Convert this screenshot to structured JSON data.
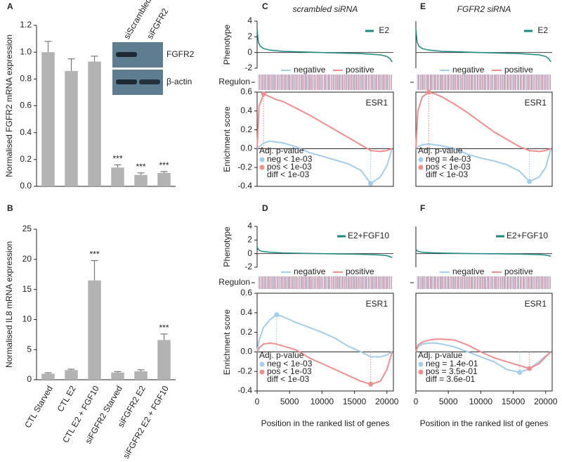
{
  "chart_data": [
    {
      "type": "bar",
      "label": "A",
      "ylabel": "Normalised FGFR2 mRNA expression",
      "values": [
        1.0,
        0.86,
        0.93,
        0.14,
        0.085,
        0.1
      ],
      "errors": [
        0.08,
        0.09,
        0.04,
        0.02,
        0.015,
        0.01
      ],
      "significance": [
        null,
        null,
        null,
        "***",
        "***",
        "***"
      ],
      "color": "#b3b3b3",
      "ylim": [
        0,
        1.2
      ],
      "yticks": [
        {
          "value": 0,
          "label": "0.0"
        },
        0.2,
        0.4,
        0.6,
        0.8,
        {
          "value": 1,
          "label": "1.0"
        },
        1.2
      ],
      "inset": {
        "columns": [
          "siScrambled",
          "siFGFR2"
        ],
        "rows": [
          "FGFR2",
          "β-actin"
        ]
      }
    },
    {
      "type": "bar",
      "label": "B",
      "ylabel": "Normalised IL8 mRNA expression",
      "categories": [
        "CTL Starved",
        "CTL E2",
        "CTL E2 + FGF10",
        "siFGFR2 Starved",
        "siFGFR2 E2",
        "siFGFR2 E2 + FGF10"
      ],
      "values": [
        1.0,
        1.6,
        16.5,
        1.2,
        1.4,
        6.6
      ],
      "errors": [
        0.15,
        0.15,
        3.3,
        0.15,
        0.25,
        1.0
      ],
      "significance": [
        null,
        null,
        "***",
        null,
        null,
        "***"
      ],
      "color": "#b3b3b3",
      "ylim": [
        0,
        25
      ],
      "yticks": [
        0,
        5,
        10,
        15,
        20,
        25
      ]
    },
    {
      "type": "enrichment",
      "label": "C",
      "title": "scrambled siRNA",
      "xlim": [
        0,
        21000
      ],
      "phenotype": {
        "ylabel": "Phenotype",
        "name": "E2",
        "color": "#1a8a80",
        "ylim": [
          -2,
          4
        ],
        "yticks": [
          -2,
          0,
          2,
          4
        ],
        "x": [
          0,
          200,
          500,
          1000,
          2000,
          4000,
          8000,
          12000,
          16000,
          19000,
          20000,
          20500,
          20800
        ],
        "values": [
          3,
          1.3,
          0.8,
          0.5,
          0.3,
          0.15,
          0.05,
          -0.05,
          -0.15,
          -0.3,
          -0.5,
          -0.8,
          -1.2
        ]
      },
      "regulon_label": "Regulon",
      "ylabel": "Enrichment score",
      "ylim": [
        -0.4,
        0.6
      ],
      "yticks": [
        -0.4,
        -0.2,
        {
          "value": 0,
          "label": "0.0"
        },
        0.2,
        0.4,
        0.6
      ],
      "x": [
        0,
        300,
        1000,
        2000,
        3000,
        4000,
        6000,
        8000,
        10000,
        12000,
        14000,
        16000,
        17500,
        19000,
        20000,
        20800
      ],
      "series": [
        {
          "name": "negative",
          "color": "#a3cdec",
          "values": [
            0,
            0.02,
            0.06,
            0.08,
            0.07,
            0.06,
            0.02,
            -0.04,
            -0.08,
            -0.12,
            -0.16,
            -0.23,
            -0.37,
            -0.3,
            -0.18,
            0
          ]
        },
        {
          "name": "positive",
          "color": "#f08e8e",
          "values": [
            0,
            0.45,
            0.58,
            0.55,
            0.52,
            0.5,
            0.43,
            0.36,
            0.28,
            0.2,
            0.12,
            0.04,
            -0.02,
            -0.03,
            -0.02,
            0
          ]
        }
      ],
      "gene_set": "ESR1",
      "stats": {
        "title": "Adj. p-value",
        "lines": [
          "neg < 1e-03",
          "pos < 1e-03",
          "diff < 1e-03"
        ]
      }
    },
    {
      "type": "enrichment",
      "label": "D",
      "xlim": [
        0,
        21000
      ],
      "xticks": [
        0,
        5000,
        10000,
        15000,
        20000
      ],
      "xlabel": "Position in the ranked list of genes",
      "phenotype": {
        "ylabel": "Phenotype",
        "name": "E2+FGF10",
        "color": "#1a8a80",
        "ylim": [
          -2,
          4
        ],
        "yticks": [
          -2,
          0,
          2,
          4
        ],
        "x": [
          0,
          200,
          500,
          1000,
          2000,
          4000,
          8000,
          12000,
          16000,
          19000,
          20000,
          20500,
          20800
        ],
        "values": [
          1.0,
          0.6,
          0.4,
          0.3,
          0.2,
          0.1,
          0.03,
          -0.03,
          -0.1,
          -0.2,
          -0.3,
          -0.45,
          -0.6
        ]
      },
      "regulon_label": "Regulon",
      "ylabel": "Enrichment score",
      "ylim": [
        -0.4,
        0.6
      ],
      "yticks": [
        -0.4,
        -0.2,
        {
          "value": 0,
          "label": "0.0"
        },
        0.2,
        0.4,
        0.6
      ],
      "x": [
        0,
        300,
        1000,
        2000,
        3000,
        4000,
        6000,
        8000,
        10000,
        12000,
        14000,
        16000,
        17500,
        19000,
        20000,
        20800
      ],
      "series": [
        {
          "name": "negative",
          "color": "#a3cdec",
          "values": [
            0,
            0.12,
            0.25,
            0.33,
            0.38,
            0.36,
            0.3,
            0.25,
            0.2,
            0.14,
            0.06,
            0.0,
            -0.05,
            -0.05,
            -0.03,
            0
          ]
        },
        {
          "name": "positive",
          "color": "#f08e8e",
          "values": [
            0,
            0.04,
            0.08,
            0.09,
            0.08,
            0.06,
            0.02,
            -0.06,
            -0.12,
            -0.18,
            -0.24,
            -0.3,
            -0.33,
            -0.3,
            -0.18,
            0
          ]
        }
      ],
      "gene_set": "ESR1",
      "stats": {
        "title": "Adj. p-value",
        "lines": [
          "neg < 1e-03",
          "pos < 1e-03",
          "diff < 1e-03"
        ]
      }
    },
    {
      "type": "enrichment",
      "label": "E",
      "title": "FGFR2 siRNA",
      "xlim": [
        0,
        21000
      ],
      "phenotype": {
        "name": "E2",
        "color": "#1a8a80",
        "ylim": [
          -2,
          4
        ],
        "x": [
          0,
          200,
          500,
          1000,
          2000,
          4000,
          8000,
          12000,
          16000,
          19000,
          20000,
          20500,
          20800
        ],
        "values": [
          3,
          1.3,
          0.8,
          0.5,
          0.3,
          0.15,
          0.05,
          -0.05,
          -0.15,
          -0.3,
          -0.5,
          -0.8,
          -1.2
        ]
      },
      "ylim": [
        -0.4,
        0.6
      ],
      "x": [
        0,
        300,
        1000,
        2000,
        3000,
        4000,
        6000,
        8000,
        10000,
        12000,
        14000,
        16000,
        17500,
        19000,
        20000,
        20800
      ],
      "series": [
        {
          "name": "negative",
          "color": "#a3cdec",
          "values": [
            0,
            0.02,
            0.04,
            0.05,
            0.04,
            0.03,
            0.0,
            -0.06,
            -0.1,
            -0.13,
            -0.17,
            -0.24,
            -0.35,
            -0.3,
            -0.2,
            0
          ]
        },
        {
          "name": "positive",
          "color": "#f08e8e",
          "values": [
            0,
            0.4,
            0.55,
            0.6,
            0.58,
            0.55,
            0.47,
            0.38,
            0.28,
            0.18,
            0.1,
            0.02,
            -0.02,
            -0.03,
            -0.02,
            0
          ]
        }
      ],
      "gene_set": "ESR1",
      "stats": {
        "title": "Adj. p-value",
        "lines": [
          "neg = 4e-03",
          "pos < 1e-03",
          "diff < 1e-03"
        ]
      }
    },
    {
      "type": "enrichment",
      "label": "F",
      "xlim": [
        0,
        21000
      ],
      "xticks": [
        0,
        5000,
        10000,
        15000,
        20000
      ],
      "xlabel": "Position in the ranked list of genes",
      "phenotype": {
        "name": "E2+FGF10",
        "color": "#1a8a80",
        "ylim": [
          -2,
          4
        ],
        "x": [
          0,
          200,
          500,
          1000,
          2000,
          4000,
          8000,
          12000,
          16000,
          19000,
          20000,
          20500,
          20800
        ],
        "values": [
          0.6,
          0.4,
          0.3,
          0.2,
          0.15,
          0.08,
          0.02,
          -0.02,
          -0.08,
          -0.15,
          -0.22,
          -0.3,
          -0.4
        ]
      },
      "ylim": [
        -0.4,
        0.6
      ],
      "x": [
        0,
        300,
        1000,
        2000,
        3000,
        4000,
        6000,
        8000,
        10000,
        12000,
        14000,
        16000,
        17500,
        19000,
        20000,
        20800
      ],
      "series": [
        {
          "name": "negative",
          "color": "#a3cdec",
          "values": [
            0,
            0.05,
            0.08,
            0.09,
            0.09,
            0.08,
            0.05,
            0.0,
            -0.05,
            -0.1,
            -0.18,
            -0.21,
            -0.17,
            -0.1,
            -0.04,
            0
          ]
        },
        {
          "name": "positive",
          "color": "#f08e8e",
          "values": [
            0,
            0.07,
            0.1,
            0.12,
            0.13,
            0.13,
            0.12,
            0.07,
            0.0,
            -0.06,
            -0.1,
            -0.14,
            -0.17,
            -0.12,
            -0.05,
            0
          ]
        }
      ],
      "gene_set": "ESR1",
      "stats": {
        "title": "Adj. p-value",
        "lines": [
          "neg = 1.4e-01",
          "pos = 3.5e-01",
          "diff = 3.6e-01"
        ]
      }
    }
  ]
}
